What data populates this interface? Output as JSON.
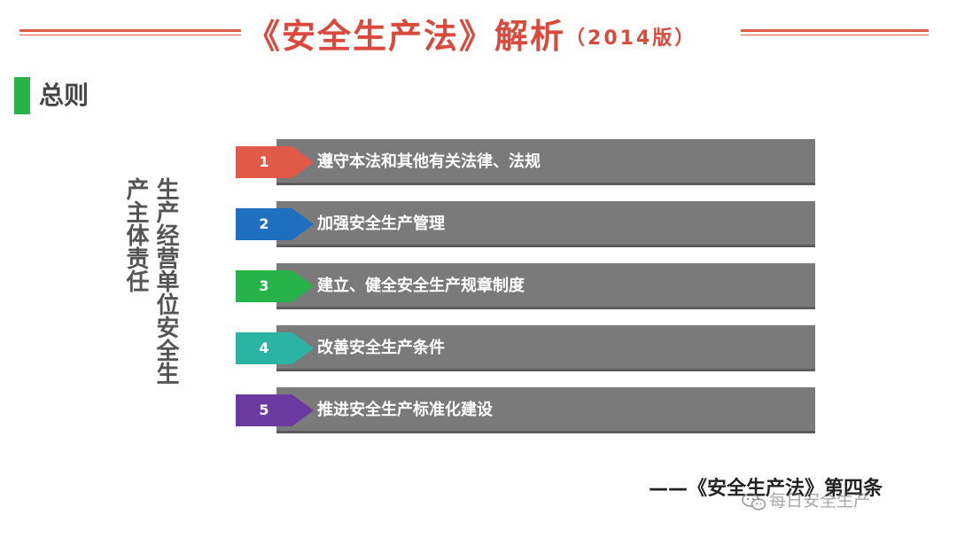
{
  "header": {
    "title": "《安全生产法》解析",
    "year": "（2014版）"
  },
  "section": {
    "title": "总则"
  },
  "side_label": "生产经营单位安全生产主体责任",
  "items": [
    {
      "number": "1",
      "text": "遵守本法和其他有关法律、法规",
      "color": "#e05a47"
    },
    {
      "number": "2",
      "text": "加强安全生产管理",
      "color": "#1f6fc0"
    },
    {
      "number": "3",
      "text": "建立、健全安全生产规章制度",
      "color": "#27b24a"
    },
    {
      "number": "4",
      "text": "改善安全生产条件",
      "color": "#2bb3a3"
    },
    {
      "number": "5",
      "text": "推进安全生产标准化建设",
      "color": "#6b3aa0"
    }
  ],
  "source": "——《安全生产法》第四条",
  "watermark": "每日安全生产"
}
